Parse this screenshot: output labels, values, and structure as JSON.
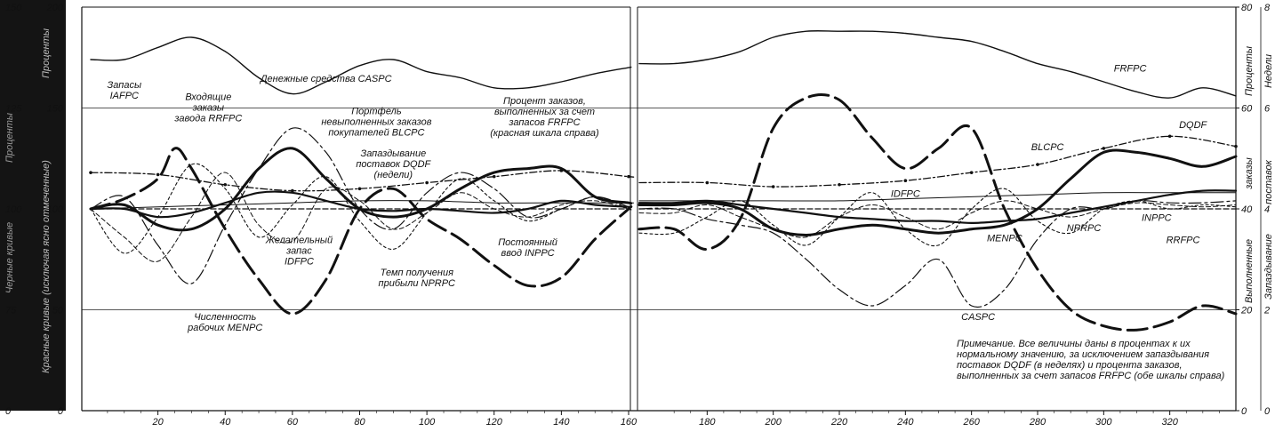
{
  "chart_data": {
    "type": "line",
    "x_ticks_left": [
      20,
      40,
      60,
      80,
      100,
      120,
      140,
      160
    ],
    "x_ticks_right": [
      180,
      200,
      220,
      240,
      260,
      280,
      300,
      320
    ],
    "xlim": [
      0,
      340
    ],
    "y_ticks_main": [
      0,
      50,
      100,
      150,
      200
    ],
    "y_ticks_main_alt": [
      0,
      75,
      100,
      125,
      150
    ],
    "ylim": [
      0,
      200
    ],
    "ylabel_left_red": "Красные кривые (исключая ясно отмеченные)",
    "ylabel_left_black": "Черные кривые",
    "ylabel_left_percent_1": "Проценты",
    "ylabel_left_percent_2": "Проценты",
    "right_scale_percent": {
      "label": "Проценты",
      "ticks": [
        0,
        20,
        40,
        60,
        80
      ]
    },
    "right_scale_weeks": {
      "label": "Недели",
      "ticks": [
        0,
        2,
        4,
        6,
        8
      ]
    },
    "right_label_delay": "Запаздывание",
    "right_label_orders": "заказы",
    "right_label_delivery": "поставок",
    "right_label_fulfilled": "Выполненные",
    "series": [
      {
        "name": "FRFPC",
        "style": "solid",
        "x": [
          0,
          10,
          20,
          30,
          40,
          50,
          60,
          70,
          80,
          90,
          100,
          110,
          120,
          130,
          140,
          150,
          160,
          170,
          180,
          190,
          200,
          210,
          220,
          230,
          240,
          250,
          260,
          270,
          280,
          290,
          300,
          310,
          320,
          330,
          340
        ],
        "y": [
          174,
          174,
          180,
          185,
          178,
          165,
          157,
          163,
          171,
          174,
          168,
          165,
          160,
          160,
          163,
          167,
          170,
          172,
          174,
          178,
          185,
          188,
          188,
          188,
          187,
          185,
          183,
          178,
          172,
          168,
          163,
          158,
          155,
          160,
          156
        ]
      },
      {
        "name": "CASPC",
        "style": "dash-dot",
        "x": [
          0,
          10,
          20,
          30,
          40,
          50,
          60,
          70,
          80,
          90,
          100,
          110,
          120,
          130,
          140,
          150,
          160,
          170,
          180,
          190,
          200,
          210,
          220,
          230,
          240,
          250,
          260,
          270,
          280,
          290,
          300,
          310,
          320,
          330,
          340
        ],
        "y": [
          100,
          106,
          82,
          63,
          92,
          120,
          140,
          128,
          100,
          90,
          108,
          118,
          110,
          96,
          100,
          106,
          101,
          100,
          95,
          92,
          88,
          75,
          60,
          52,
          62,
          75,
          52,
          60,
          85,
          100,
          100,
          104,
          103,
          103,
          104
        ]
      },
      {
        "name": "IAFPC",
        "style": "long-dash",
        "x": [
          0,
          10,
          20,
          25,
          30,
          40,
          50,
          60,
          70,
          80,
          90,
          100,
          110,
          120,
          130,
          140,
          150,
          160,
          170,
          180,
          190,
          200,
          210,
          220,
          230,
          240,
          250,
          260,
          270,
          280,
          290,
          300,
          310,
          320,
          330,
          340
        ],
        "y": [
          100,
          105,
          115,
          130,
          120,
          90,
          65,
          48,
          65,
          100,
          110,
          95,
          85,
          72,
          62,
          66,
          85,
          100,
          90,
          80,
          95,
          140,
          155,
          154,
          135,
          120,
          130,
          140,
          100,
          70,
          50,
          42,
          40,
          44,
          52,
          48
        ]
      },
      {
        "name": "RRFPC",
        "style": "dotted",
        "x": [
          0,
          10,
          20,
          30,
          40,
          50,
          60,
          70,
          80,
          90,
          100,
          110,
          120,
          130,
          140,
          150,
          160,
          170,
          180,
          190,
          200,
          210,
          220,
          230,
          240,
          250,
          260,
          270,
          280,
          290,
          300,
          310,
          320,
          330,
          340
        ],
        "y": [
          100,
          78,
          96,
          122,
          110,
          86,
          102,
          116,
          94,
          80,
          98,
          115,
          104,
          94,
          100,
          106,
          100,
          88,
          96,
          104,
          92,
          82,
          96,
          108,
          90,
          82,
          100,
          110,
          94,
          88,
          100,
          104,
          100,
          102,
          101
        ]
      },
      {
        "name": "BLCPC",
        "style": "thick",
        "x": [
          0,
          10,
          20,
          30,
          40,
          50,
          60,
          70,
          80,
          90,
          100,
          110,
          120,
          130,
          140,
          150,
          160,
          170,
          180,
          190,
          200,
          210,
          220,
          230,
          240,
          250,
          260,
          270,
          280,
          290,
          300,
          310,
          320,
          330,
          340
        ],
        "y": [
          100,
          102,
          92,
          90,
          100,
          120,
          130,
          115,
          100,
          96,
          100,
          110,
          118,
          120,
          120,
          106,
          103,
          102,
          103,
          100,
          90,
          87,
          90,
          92,
          90,
          88,
          90,
          92,
          100,
          115,
          128,
          128,
          125,
          121,
          126
        ]
      },
      {
        "name": "DQDF",
        "style": "dot-dash-thin",
        "x": [
          0,
          20,
          40,
          60,
          80,
          100,
          120,
          140,
          160,
          180,
          200,
          220,
          240,
          260,
          280,
          300,
          320,
          340
        ],
        "y": [
          118,
          117,
          112,
          109,
          110,
          113,
          116,
          119,
          116,
          113,
          111,
          112,
          114,
          118,
          122,
          130,
          136,
          131
        ]
      },
      {
        "name": "MENPC",
        "style": "solid-medium",
        "x": [
          0,
          10,
          20,
          30,
          40,
          50,
          60,
          70,
          80,
          90,
          100,
          110,
          120,
          130,
          140,
          150,
          160,
          170,
          180,
          190,
          200,
          210,
          220,
          230,
          240,
          250,
          260,
          270,
          280,
          290,
          300,
          310,
          320,
          330,
          340
        ],
        "y": [
          100,
          100,
          96,
          98,
          103,
          108,
          108,
          104,
          100,
          99,
          100,
          99,
          98,
          100,
          104,
          102,
          101,
          103,
          104,
          102,
          100,
          98,
          96,
          95,
          94,
          94,
          93,
          94,
          95,
          98,
          101,
          104,
          107,
          109,
          109
        ]
      },
      {
        "name": "IDFPC",
        "style": "thin",
        "x": [
          0,
          20,
          40,
          60,
          80,
          100,
          120,
          140,
          160,
          180,
          200,
          220,
          240,
          260,
          280,
          300,
          320,
          340
        ],
        "y": [
          100,
          101,
          102,
          103,
          104,
          104,
          103,
          103,
          103,
          104,
          104,
          104,
          105,
          106,
          107,
          108,
          108,
          108
        ]
      },
      {
        "name": "INPPC",
        "style": "dashed-flat",
        "x": [
          0,
          340
        ],
        "y": [
          100,
          100
        ]
      },
      {
        "name": "NPRPC",
        "style": "thin-dash",
        "x": [
          0,
          10,
          20,
          30,
          40,
          50,
          60,
          70,
          80,
          90,
          100,
          110,
          120,
          130,
          140,
          150,
          160,
          170,
          180,
          190,
          200,
          210,
          220,
          230,
          240,
          250,
          260,
          270,
          280,
          290,
          300,
          310,
          320,
          330,
          340
        ],
        "y": [
          100,
          86,
          74,
          96,
          118,
          92,
          84,
          110,
          104,
          90,
          98,
          108,
          100,
          96,
          102,
          104,
          100,
          98,
          102,
          96,
          90,
          86,
          96,
          102,
          96,
          90,
          98,
          104,
          100,
          96,
          100,
          103,
          102,
          101,
          102
        ]
      }
    ],
    "annotations": [
      {
        "lines": [
          "Запасы",
          "IAFPC"
        ],
        "x": 10,
        "y": 160
      },
      {
        "lines": [
          "Входящие",
          "заказы",
          "завода RRFPC"
        ],
        "x": 35,
        "y": 154
      },
      {
        "lines": [
          "Денежные средства CASPC"
        ],
        "x": 70,
        "y": 163
      },
      {
        "lines": [
          "Портфель",
          "невыполненных заказов",
          "покупателей BLCPC"
        ],
        "x": 85,
        "y": 147
      },
      {
        "lines": [
          "Запаздывание",
          "поставок DQDF",
          "(недели)"
        ],
        "x": 90,
        "y": 126
      },
      {
        "lines": [
          "Процент заказов,",
          "выполненных за счет",
          "запасов FRFPC",
          "(красная шкала справа)"
        ],
        "x": 135,
        "y": 152
      },
      {
        "lines": [
          "Желательный",
          "запас",
          "IDFPC"
        ],
        "x": 62,
        "y": 83
      },
      {
        "lines": [
          "Численность",
          "рабочих MENPC"
        ],
        "x": 40,
        "y": 45
      },
      {
        "lines": [
          "Темп получения",
          "прибыли NPRPC"
        ],
        "x": 97,
        "y": 67
      },
      {
        "lines": [
          "Постоянный",
          "ввод INPPC"
        ],
        "x": 130,
        "y": 82
      },
      {
        "lines": [
          "FRFPC"
        ],
        "x": 308,
        "y": 168
      },
      {
        "lines": [
          "DQDF"
        ],
        "x": 327,
        "y": 140
      },
      {
        "lines": [
          "BLCPC"
        ],
        "x": 283,
        "y": 129
      },
      {
        "lines": [
          "IDFPC"
        ],
        "x": 240,
        "y": 106
      },
      {
        "lines": [
          "INPPC"
        ],
        "x": 316,
        "y": 94
      },
      {
        "lines": [
          "NPRPC"
        ],
        "x": 294,
        "y": 89
      },
      {
        "lines": [
          "MENPC"
        ],
        "x": 270,
        "y": 84
      },
      {
        "lines": [
          "RRFPC"
        ],
        "x": 324,
        "y": 83
      },
      {
        "lines": [
          "CASPC"
        ],
        "x": 262,
        "y": 45
      }
    ],
    "note": [
      "Примечание. Все величины даны в процентах к их",
      "нормальному значению, за исключением запаздывания",
      "поставок DQDF (в неделях) и процента заказов,",
      "выполненных за счет запасов FRFPC (обе шкалы справа)"
    ]
  }
}
